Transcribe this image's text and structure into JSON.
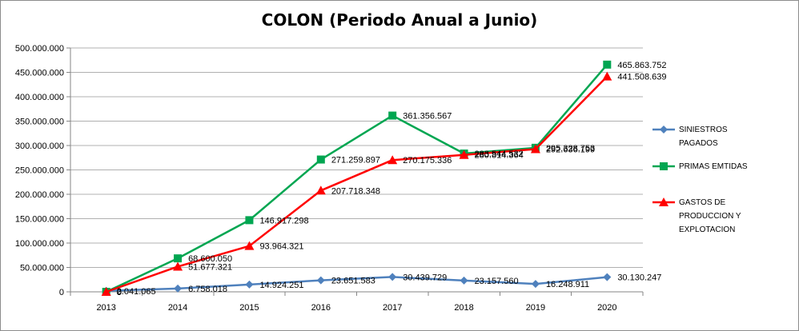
{
  "chart_data": {
    "type": "line",
    "title": "COLON (Periodo Anual a Junio)",
    "x": [
      "2013",
      "2014",
      "2015",
      "2016",
      "2017",
      "2018",
      "2019",
      "2020"
    ],
    "ylim": [
      0,
      500000000
    ],
    "yticks": [
      "0",
      "50.000.000",
      "100.000.000",
      "150.000.000",
      "200.000.000",
      "250.000.000",
      "300.000.000",
      "350.000.000",
      "400.000.000",
      "450.000.000",
      "500.000.000"
    ],
    "grid": "horizontal",
    "legend_position": "right",
    "series": [
      {
        "name": "SINIESTROS PAGADOS",
        "legend_lines": [
          "SINIESTROS",
          "PAGADOS"
        ],
        "color": "#4f81bd",
        "marker": "diamond",
        "values": [
          2041065,
          6758018,
          14924251,
          23651583,
          30439729,
          23157560,
          16248911,
          30130247
        ],
        "labels": [
          "2.041.065",
          "6.758.018",
          "14.924.251",
          "23.651.583",
          "30.439.729",
          "23.157.560",
          "16.248.911",
          "30.130.247"
        ]
      },
      {
        "name": "PRIMAS EMTIDAS",
        "legend_lines": [
          "PRIMAS EMTIDAS"
        ],
        "color": "#00a651",
        "marker": "square",
        "values": [
          0,
          68600050,
          146917298,
          271259897,
          361356567,
          283544532,
          295328753,
          465863752
        ],
        "labels": [
          "0",
          "68.600.050",
          "146.917.298",
          "271.259.897",
          "361.356.567",
          "283.544.532",
          "295.328.753",
          "465.863.752"
        ]
      },
      {
        "name": "GASTOS DE PRODUCCION Y EXPLOTACION",
        "legend_lines": [
          "GASTOS DE",
          "PRODUCCION Y",
          "EXPLOTACION"
        ],
        "color": "#ff0000",
        "marker": "triangle",
        "values": [
          0,
          51677321,
          93964321,
          207718348,
          270175336,
          280814364,
          292636199,
          441508639
        ],
        "labels": [
          "0",
          "51.677.321",
          "93.964.321",
          "207.718.348",
          "270.175.336",
          "280.814.364",
          "292.636.199",
          "441.508.639"
        ]
      }
    ]
  }
}
